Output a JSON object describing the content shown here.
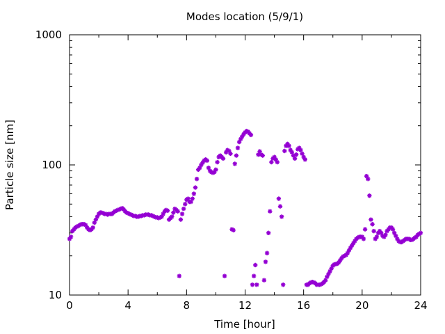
{
  "chart_data": {
    "type": "scatter",
    "title": "Modes location (5/9/1)",
    "xlabel": "Time [hour]",
    "ylabel": "Particle size [nm]",
    "x_scale": "linear",
    "y_scale": "log",
    "xlim": [
      0,
      24
    ],
    "ylim": [
      10,
      1000
    ],
    "x_ticks": [
      0,
      4,
      8,
      12,
      16,
      20,
      24
    ],
    "x_tick_labels": [
      "0",
      "4",
      "8",
      "12",
      "16",
      "20",
      "24"
    ],
    "y_ticks": [
      10,
      100,
      1000
    ],
    "y_tick_labels": [
      "10",
      "100",
      "1000"
    ],
    "grid": false,
    "legend": "none",
    "marker": "asterisk",
    "series": [
      {
        "color": "#9400d3",
        "points": [
          [
            0.0,
            27
          ],
          [
            0.1,
            28
          ],
          [
            0.2,
            31
          ],
          [
            0.3,
            32
          ],
          [
            0.4,
            33
          ],
          [
            0.5,
            33.5
          ],
          [
            0.6,
            34
          ],
          [
            0.7,
            34.5
          ],
          [
            0.8,
            35
          ],
          [
            0.9,
            35
          ],
          [
            1.0,
            35
          ],
          [
            1.1,
            34.5
          ],
          [
            1.2,
            33
          ],
          [
            1.3,
            32
          ],
          [
            1.4,
            31.5
          ],
          [
            1.5,
            32
          ],
          [
            1.6,
            33
          ],
          [
            1.7,
            36
          ],
          [
            1.8,
            38
          ],
          [
            1.9,
            40
          ],
          [
            2.0,
            42
          ],
          [
            2.1,
            43
          ],
          [
            2.2,
            43
          ],
          [
            2.3,
            42.5
          ],
          [
            2.4,
            42
          ],
          [
            2.5,
            42
          ],
          [
            2.6,
            41.5
          ],
          [
            2.7,
            42
          ],
          [
            2.8,
            42
          ],
          [
            2.9,
            42
          ],
          [
            3.0,
            43
          ],
          [
            3.1,
            44
          ],
          [
            3.2,
            44.5
          ],
          [
            3.3,
            45
          ],
          [
            3.4,
            45.5
          ],
          [
            3.5,
            46
          ],
          [
            3.6,
            46.5
          ],
          [
            3.7,
            45.5
          ],
          [
            3.8,
            44
          ],
          [
            3.9,
            43
          ],
          [
            4.0,
            42.5
          ],
          [
            4.1,
            42
          ],
          [
            4.2,
            41.5
          ],
          [
            4.3,
            41
          ],
          [
            4.4,
            40.5
          ],
          [
            4.5,
            40.5
          ],
          [
            4.6,
            40
          ],
          [
            4.7,
            40
          ],
          [
            4.8,
            40.5
          ],
          [
            4.9,
            40.5
          ],
          [
            5.0,
            41
          ],
          [
            5.1,
            41
          ],
          [
            5.2,
            41.5
          ],
          [
            5.3,
            41.5
          ],
          [
            5.4,
            41.5
          ],
          [
            5.5,
            41
          ],
          [
            5.6,
            41
          ],
          [
            5.7,
            40.5
          ],
          [
            5.8,
            40
          ],
          [
            5.9,
            39.5
          ],
          [
            6.0,
            39.5
          ],
          [
            6.1,
            39
          ],
          [
            6.2,
            39.5
          ],
          [
            6.3,
            40
          ],
          [
            6.4,
            42
          ],
          [
            6.5,
            44
          ],
          [
            6.6,
            45
          ],
          [
            6.7,
            44.5
          ],
          [
            6.8,
            38
          ],
          [
            6.9,
            39
          ],
          [
            7.0,
            40
          ],
          [
            7.1,
            43
          ],
          [
            7.2,
            46
          ],
          [
            7.3,
            45
          ],
          [
            7.4,
            44
          ],
          [
            7.5,
            14
          ],
          [
            7.6,
            38
          ],
          [
            7.7,
            42
          ],
          [
            7.8,
            46
          ],
          [
            7.9,
            50
          ],
          [
            8.0,
            54
          ],
          [
            8.1,
            55
          ],
          [
            8.2,
            52
          ],
          [
            8.3,
            52
          ],
          [
            8.4,
            55
          ],
          [
            8.5,
            60
          ],
          [
            8.6,
            67
          ],
          [
            8.7,
            78
          ],
          [
            8.8,
            92
          ],
          [
            8.9,
            95
          ],
          [
            9.0,
            100
          ],
          [
            9.1,
            104
          ],
          [
            9.2,
            108
          ],
          [
            9.3,
            110
          ],
          [
            9.4,
            108
          ],
          [
            9.5,
            95
          ],
          [
            9.6,
            90
          ],
          [
            9.7,
            88
          ],
          [
            9.8,
            87
          ],
          [
            9.9,
            88
          ],
          [
            10.0,
            92
          ],
          [
            10.1,
            105
          ],
          [
            10.2,
            115
          ],
          [
            10.3,
            118
          ],
          [
            10.4,
            115
          ],
          [
            10.5,
            112
          ],
          [
            10.6,
            14
          ],
          [
            10.7,
            125
          ],
          [
            10.8,
            130
          ],
          [
            10.9,
            128
          ],
          [
            11.0,
            122
          ],
          [
            11.1,
            32
          ],
          [
            11.2,
            31.5
          ],
          [
            11.3,
            102
          ],
          [
            11.4,
            118
          ],
          [
            11.5,
            135
          ],
          [
            11.6,
            150
          ],
          [
            11.7,
            158
          ],
          [
            11.8,
            165
          ],
          [
            11.9,
            172
          ],
          [
            12.0,
            178
          ],
          [
            12.1,
            182
          ],
          [
            12.2,
            180
          ],
          [
            12.3,
            175
          ],
          [
            12.4,
            170
          ],
          [
            12.5,
            12
          ],
          [
            12.6,
            14
          ],
          [
            12.7,
            17
          ],
          [
            12.8,
            12
          ],
          [
            12.9,
            120
          ],
          [
            13.0,
            127
          ],
          [
            13.1,
            120
          ],
          [
            13.2,
            118
          ],
          [
            13.3,
            13
          ],
          [
            13.4,
            18
          ],
          [
            13.5,
            21
          ],
          [
            13.6,
            30
          ],
          [
            13.7,
            44
          ],
          [
            13.8,
            105
          ],
          [
            13.9,
            112
          ],
          [
            14.0,
            115
          ],
          [
            14.1,
            110
          ],
          [
            14.2,
            105
          ],
          [
            14.3,
            55
          ],
          [
            14.4,
            48
          ],
          [
            14.5,
            40
          ],
          [
            14.6,
            12
          ],
          [
            14.7,
            128
          ],
          [
            14.8,
            140
          ],
          [
            14.9,
            145
          ],
          [
            15.0,
            140
          ],
          [
            15.1,
            130
          ],
          [
            15.2,
            125
          ],
          [
            15.3,
            118
          ],
          [
            15.4,
            112
          ],
          [
            15.5,
            120
          ],
          [
            15.6,
            132
          ],
          [
            15.7,
            135
          ],
          [
            15.8,
            130
          ],
          [
            15.9,
            122
          ],
          [
            16.0,
            115
          ],
          [
            16.1,
            110
          ],
          [
            16.2,
            12
          ],
          [
            16.3,
            12
          ],
          [
            16.4,
            12.3
          ],
          [
            16.5,
            12.5
          ],
          [
            16.6,
            12.6
          ],
          [
            16.7,
            12.5
          ],
          [
            16.8,
            12.3
          ],
          [
            16.9,
            12
          ],
          [
            17.0,
            12
          ],
          [
            17.1,
            12
          ],
          [
            17.2,
            12.1
          ],
          [
            17.3,
            12.3
          ],
          [
            17.4,
            12.6
          ],
          [
            17.5,
            13
          ],
          [
            17.6,
            13.8
          ],
          [
            17.7,
            14.5
          ],
          [
            17.8,
            15.2
          ],
          [
            17.9,
            16
          ],
          [
            18.0,
            16.8
          ],
          [
            18.1,
            17.2
          ],
          [
            18.2,
            17.3
          ],
          [
            18.3,
            17.4
          ],
          [
            18.4,
            17.8
          ],
          [
            18.5,
            18.5
          ],
          [
            18.6,
            19.2
          ],
          [
            18.7,
            19.8
          ],
          [
            18.8,
            20
          ],
          [
            18.9,
            20.3
          ],
          [
            19.0,
            21
          ],
          [
            19.1,
            22
          ],
          [
            19.2,
            23
          ],
          [
            19.3,
            24
          ],
          [
            19.4,
            25
          ],
          [
            19.5,
            26
          ],
          [
            19.6,
            27
          ],
          [
            19.7,
            27.5
          ],
          [
            19.8,
            28
          ],
          [
            19.9,
            28
          ],
          [
            20.0,
            28
          ],
          [
            20.1,
            27
          ],
          [
            20.2,
            32
          ],
          [
            20.3,
            82
          ],
          [
            20.4,
            78
          ],
          [
            20.5,
            58
          ],
          [
            20.6,
            38
          ],
          [
            20.7,
            35
          ],
          [
            20.8,
            31
          ],
          [
            20.9,
            27
          ],
          [
            21.0,
            28
          ],
          [
            21.1,
            30
          ],
          [
            21.2,
            31
          ],
          [
            21.3,
            30
          ],
          [
            21.4,
            28.5
          ],
          [
            21.5,
            28
          ],
          [
            21.6,
            29
          ],
          [
            21.7,
            31
          ],
          [
            21.8,
            32
          ],
          [
            21.9,
            33
          ],
          [
            22.0,
            33
          ],
          [
            22.1,
            32
          ],
          [
            22.2,
            30
          ],
          [
            22.3,
            28.5
          ],
          [
            22.4,
            27
          ],
          [
            22.5,
            26
          ],
          [
            22.6,
            25.5
          ],
          [
            22.7,
            25.5
          ],
          [
            22.8,
            26
          ],
          [
            22.9,
            26.5
          ],
          [
            23.0,
            27
          ],
          [
            23.1,
            27
          ],
          [
            23.2,
            27
          ],
          [
            23.3,
            26.5
          ],
          [
            23.4,
            26.5
          ],
          [
            23.5,
            27
          ],
          [
            23.6,
            27.5
          ],
          [
            23.7,
            28
          ],
          [
            23.8,
            29
          ],
          [
            23.9,
            29.5
          ],
          [
            24.0,
            30
          ]
        ]
      }
    ]
  }
}
